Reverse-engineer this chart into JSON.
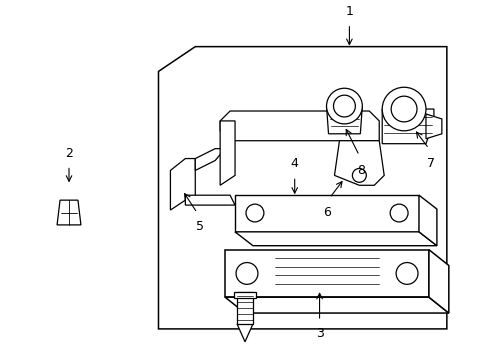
{
  "bg_color": "#ffffff",
  "line_color": "#000000",
  "figure_width": 4.89,
  "figure_height": 3.6,
  "dpi": 100
}
